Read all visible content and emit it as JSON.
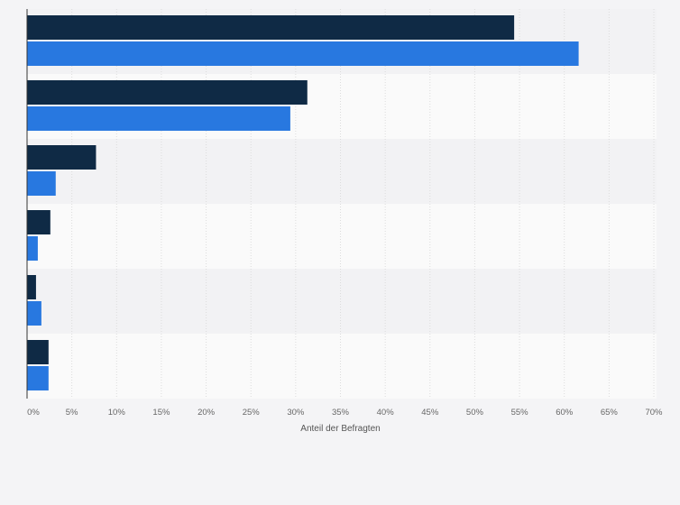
{
  "chart_data": {
    "type": "bar",
    "orientation": "horizontal",
    "title": "",
    "xlabel": "Anteil der Befragten",
    "ylabel": "",
    "xlim": [
      0,
      70
    ],
    "x_ticks": [
      0,
      5,
      10,
      15,
      20,
      25,
      30,
      35,
      40,
      45,
      50,
      55,
      60,
      65,
      70
    ],
    "x_tick_labels": [
      "0%",
      "5%",
      "10%",
      "15%",
      "20%",
      "25%",
      "30%",
      "35%",
      "40%",
      "45%",
      "50%",
      "55%",
      "60%",
      "65%",
      "70%"
    ],
    "grid": true,
    "legend": "none",
    "category_count": 6,
    "series": [
      {
        "color": "#0f2a45",
        "values": [
          54.4,
          31.3,
          7.7,
          2.6,
          1.0,
          2.4
        ]
      },
      {
        "color": "#2878e0",
        "values": [
          61.6,
          29.4,
          3.2,
          1.2,
          1.6,
          2.4
        ]
      }
    ]
  },
  "colors": {
    "background": "#f4f4f6",
    "band_dark": "#f2f2f4",
    "band_light": "#fafafa",
    "gridline": "#dcdcdc",
    "axis": "#333333"
  }
}
